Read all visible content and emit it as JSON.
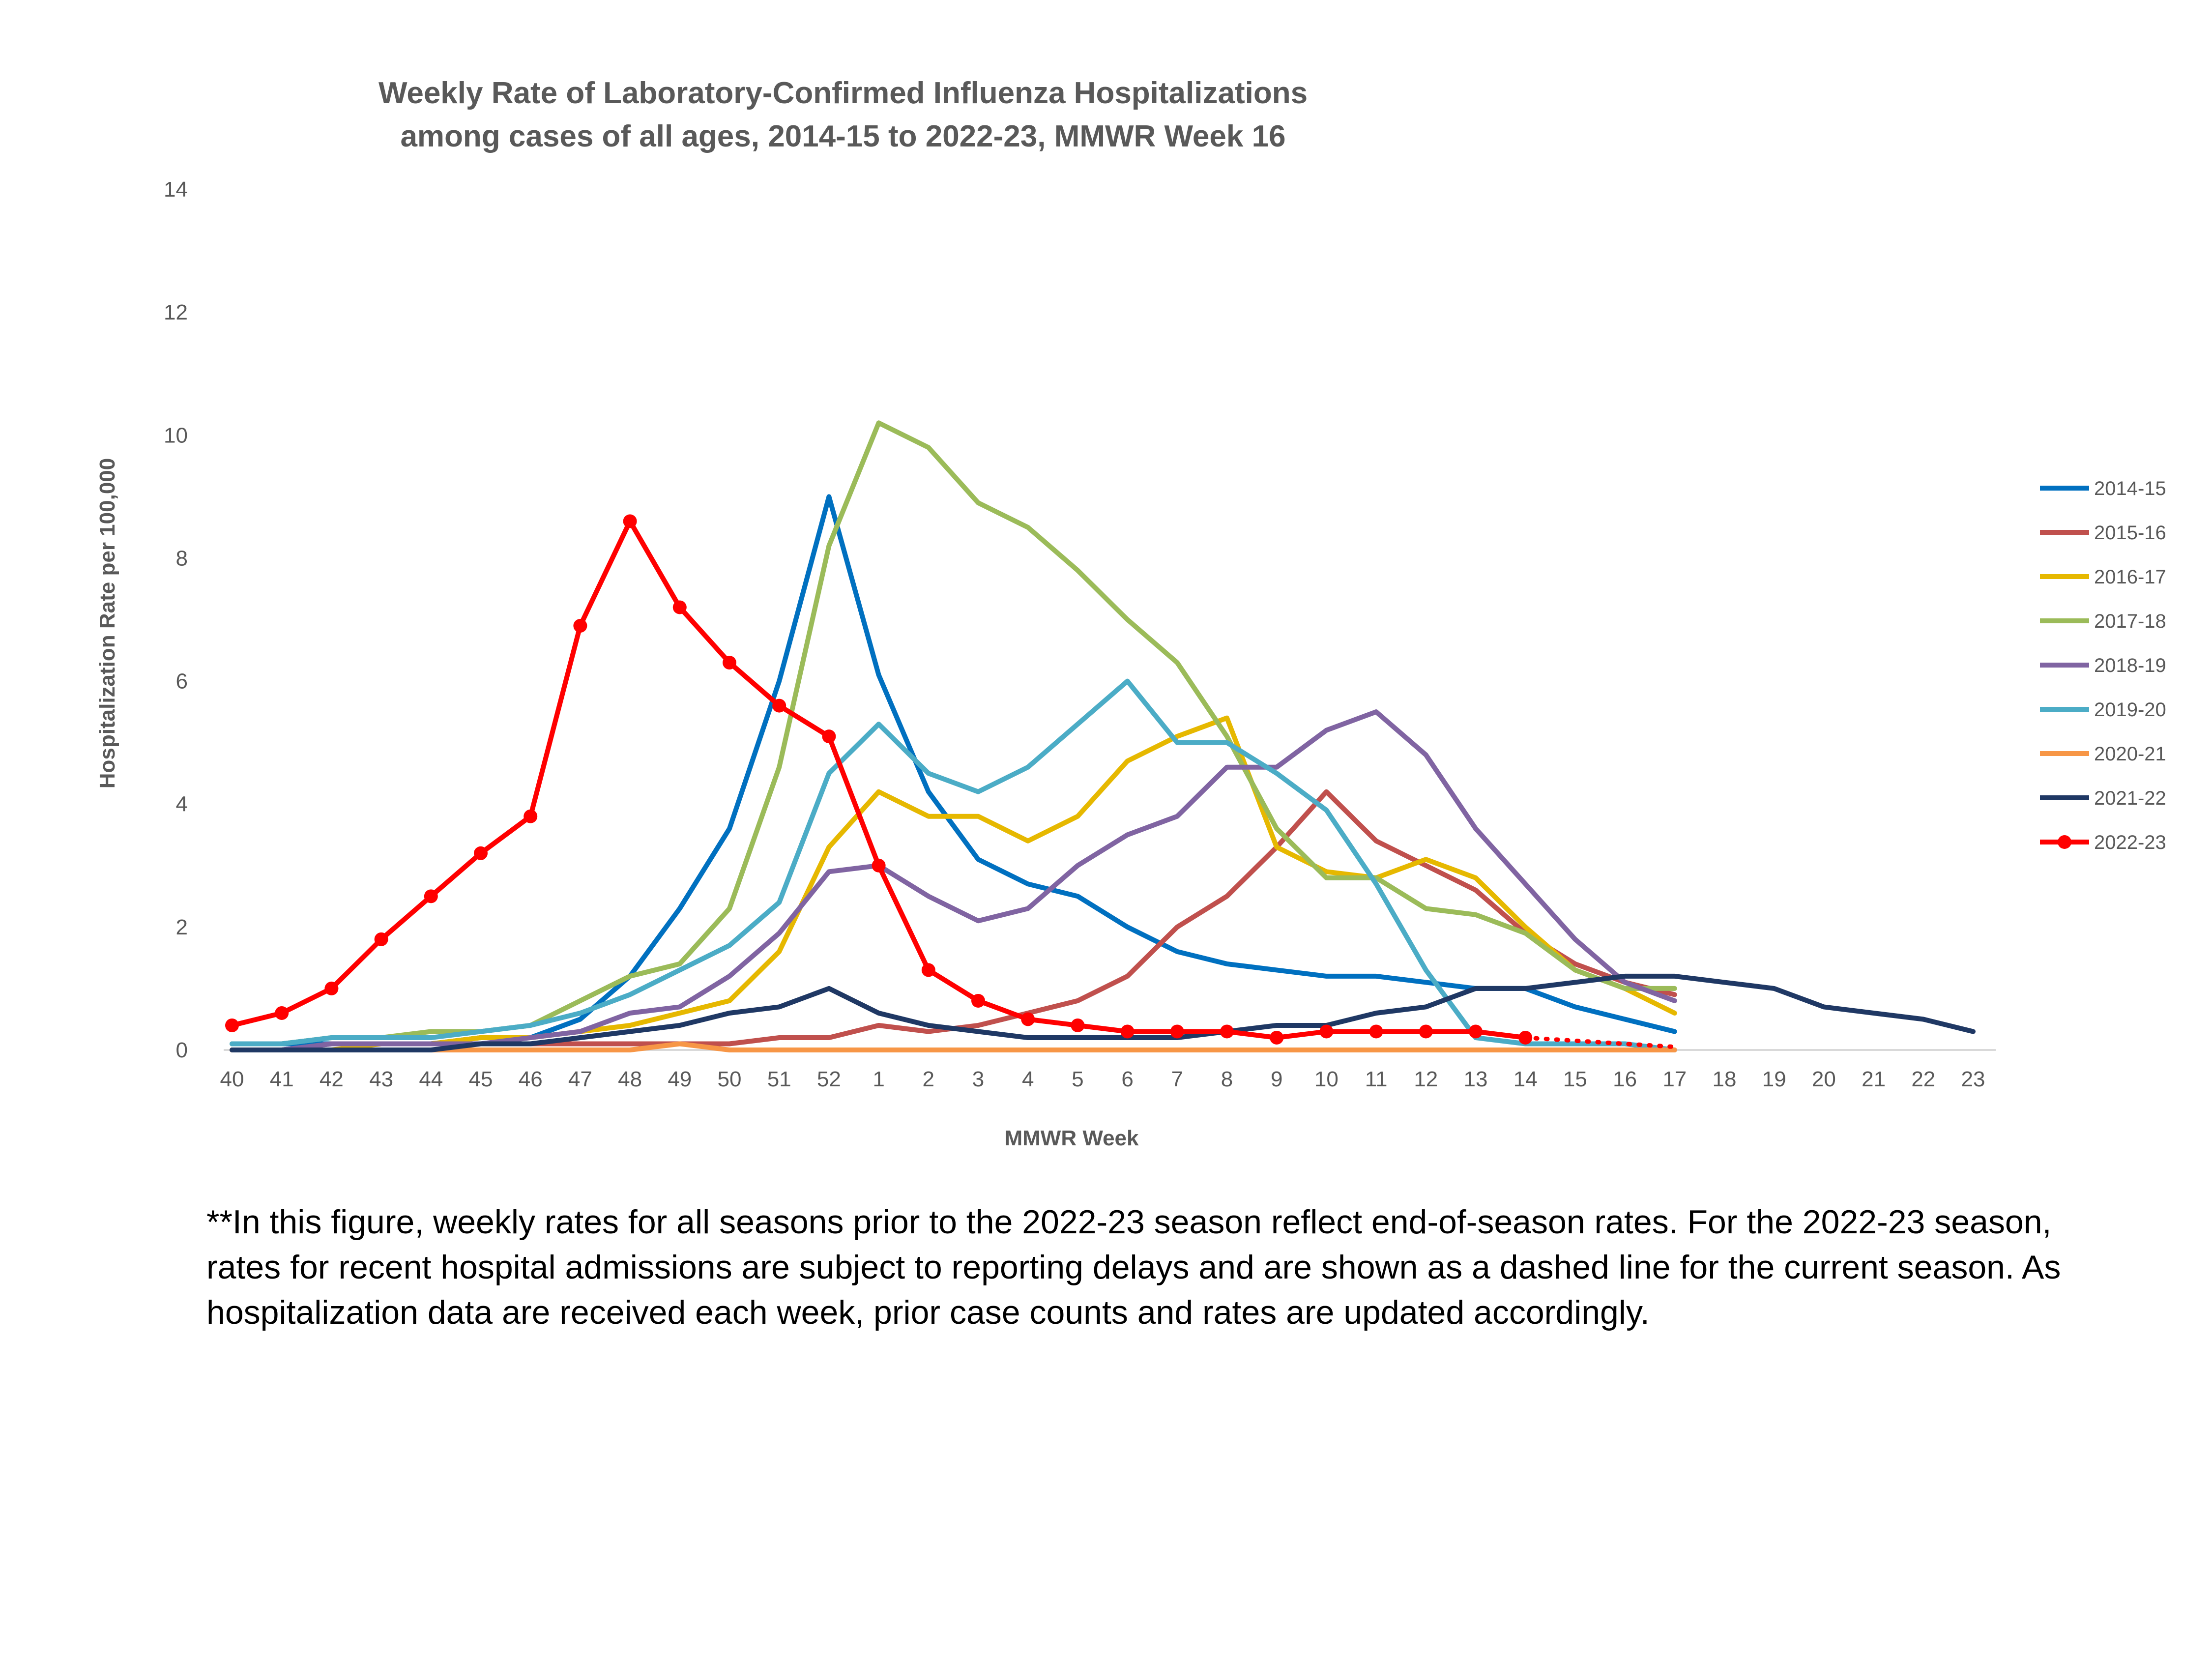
{
  "footnote": "**In this figure, weekly rates for all seasons prior to the 2022-23 season reflect end-of-season rates. For the 2022-23 season, rates for recent hospital admissions are subject to reporting delays and are shown as a dashed line for the current season. As hospitalization data are received each week, prior case counts and rates are updated accordingly.",
  "chart_data": {
    "type": "line",
    "title": "Weekly Rate of Laboratory-Confirmed Influenza Hospitalizations",
    "subtitle": "among cases of all ages, 2014-15 to 2022-23, MMWR Week 16",
    "xlabel": "MMWR Week",
    "ylabel": "Hospitalization Rate per 100,000",
    "ylim": [
      0,
      14
    ],
    "yticks": [
      "0",
      "2",
      "4",
      "6",
      "8",
      "10",
      "12",
      "14"
    ],
    "grid": false,
    "legend_position": "right",
    "categories": [
      "40",
      "41",
      "42",
      "43",
      "44",
      "45",
      "46",
      "47",
      "48",
      "49",
      "50",
      "51",
      "52",
      "1",
      "2",
      "3",
      "4",
      "5",
      "6",
      "7",
      "8",
      "9",
      "10",
      "11",
      "12",
      "13",
      "14",
      "15",
      "16",
      "17",
      "18",
      "19",
      "20",
      "21",
      "22",
      "23"
    ],
    "series": [
      {
        "name": "2014-15",
        "color": "#0070C0",
        "values": [
          0.1,
          0.1,
          0.1,
          0.1,
          0.1,
          0.2,
          0.2,
          0.5,
          1.2,
          2.3,
          3.6,
          6.0,
          9.0,
          6.1,
          4.2,
          3.1,
          2.7,
          2.5,
          2.0,
          1.6,
          1.4,
          1.3,
          1.2,
          1.2,
          1.1,
          1.0,
          1.0,
          0.7,
          0.5,
          0.3,
          null,
          null,
          null,
          null,
          null,
          null
        ]
      },
      {
        "name": "2015-16",
        "color": "#C0504D",
        "values": [
          0.0,
          0.0,
          0.1,
          0.1,
          0.1,
          0.1,
          0.1,
          0.1,
          0.1,
          0.1,
          0.1,
          0.2,
          0.2,
          0.4,
          0.3,
          0.4,
          0.6,
          0.8,
          1.2,
          2.0,
          2.5,
          3.3,
          4.2,
          3.4,
          3.0,
          2.6,
          1.9,
          1.4,
          1.1,
          0.9,
          null,
          null,
          null,
          null,
          null,
          null
        ]
      },
      {
        "name": "2016-17",
        "color": "#E6B800",
        "values": [
          0.0,
          0.0,
          0.0,
          0.1,
          0.1,
          0.2,
          0.2,
          0.3,
          0.4,
          0.6,
          0.8,
          1.6,
          3.3,
          4.2,
          3.8,
          3.8,
          3.4,
          3.8,
          4.7,
          5.1,
          5.4,
          3.3,
          2.9,
          2.8,
          3.1,
          2.8,
          2.0,
          1.3,
          1.0,
          0.6,
          null,
          null,
          null,
          null,
          null,
          null
        ]
      },
      {
        "name": "2017-18",
        "color": "#9BBB59",
        "values": [
          0.1,
          0.1,
          0.2,
          0.2,
          0.3,
          0.3,
          0.4,
          0.8,
          1.2,
          1.4,
          2.3,
          4.6,
          8.2,
          10.2,
          9.8,
          8.9,
          8.5,
          7.8,
          7.0,
          6.3,
          5.1,
          3.6,
          2.8,
          2.8,
          2.3,
          2.2,
          1.9,
          1.3,
          1.0,
          1.0,
          null,
          null,
          null,
          null,
          null,
          null
        ]
      },
      {
        "name": "2018-19",
        "color": "#8064A2",
        "values": [
          0.0,
          0.0,
          0.1,
          0.1,
          0.1,
          0.1,
          0.2,
          0.3,
          0.6,
          0.7,
          1.2,
          1.9,
          2.9,
          3.0,
          2.5,
          2.1,
          2.3,
          3.0,
          3.5,
          3.8,
          4.6,
          4.6,
          5.2,
          5.5,
          4.8,
          3.6,
          2.7,
          1.8,
          1.1,
          0.8,
          null,
          null,
          null,
          null,
          null,
          null
        ]
      },
      {
        "name": "2019-20",
        "color": "#4BACC6",
        "values": [
          0.1,
          0.1,
          0.2,
          0.2,
          0.2,
          0.3,
          0.4,
          0.6,
          0.9,
          1.3,
          1.7,
          2.4,
          4.5,
          5.3,
          4.5,
          4.2,
          4.6,
          5.3,
          6.0,
          5.0,
          5.0,
          4.5,
          3.9,
          2.7,
          1.3,
          0.2,
          0.1,
          0.1,
          0.1,
          0.0,
          null,
          null,
          null,
          null,
          null,
          null
        ]
      },
      {
        "name": "2020-21",
        "color": "#F79646",
        "values": [
          0.0,
          0.0,
          0.0,
          0.0,
          0.0,
          0.0,
          0.0,
          0.0,
          0.0,
          0.1,
          0.0,
          0.0,
          0.0,
          0.0,
          0.0,
          0.0,
          0.0,
          0.0,
          0.0,
          0.0,
          0.0,
          0.0,
          0.0,
          0.0,
          0.0,
          0.0,
          0.0,
          0.0,
          0.0,
          0.0,
          null,
          null,
          null,
          null,
          null,
          null
        ]
      },
      {
        "name": "2021-22",
        "color": "#1F3864",
        "values": [
          0.0,
          0.0,
          0.0,
          0.0,
          0.0,
          0.1,
          0.1,
          0.2,
          0.3,
          0.4,
          0.6,
          0.7,
          1.0,
          0.6,
          0.4,
          0.3,
          0.2,
          0.2,
          0.2,
          0.2,
          0.3,
          0.4,
          0.4,
          0.6,
          0.7,
          1.0,
          1.0,
          1.1,
          1.2,
          1.2,
          1.1,
          1.0,
          0.7,
          0.6,
          0.5,
          0.3
        ]
      },
      {
        "name": "2022-23",
        "color": "#FF0000",
        "markers": true,
        "dashed_from_index": 26,
        "values": [
          0.4,
          0.6,
          1.0,
          1.8,
          2.5,
          3.2,
          3.8,
          6.9,
          8.6,
          7.2,
          6.3,
          5.6,
          5.1,
          3.0,
          1.3,
          0.8,
          0.5,
          0.4,
          0.3,
          0.3,
          0.3,
          0.2,
          0.3,
          0.3,
          0.3,
          0.3,
          0.2,
          0.15,
          0.1,
          0.05,
          null,
          null,
          null,
          null,
          null,
          null
        ]
      }
    ]
  }
}
